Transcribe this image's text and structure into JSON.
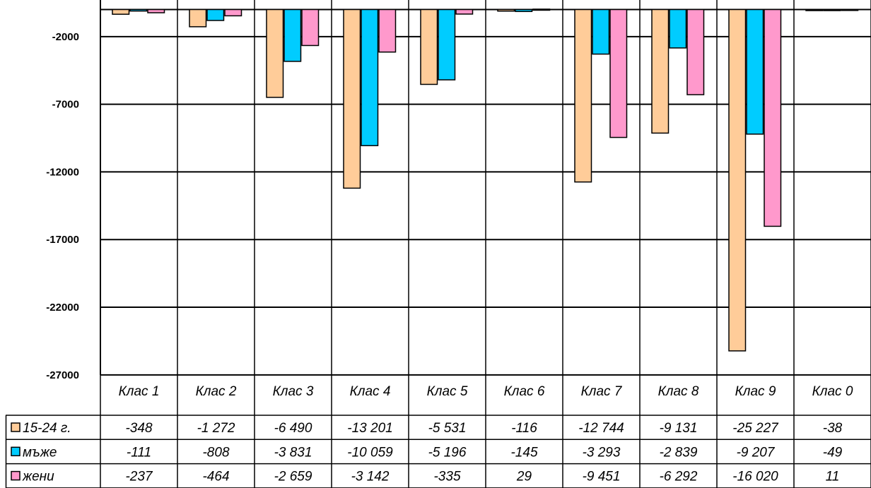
{
  "chart_data": {
    "type": "bar",
    "categories": [
      "Клас 1",
      "Клас 2",
      "Клас 3",
      "Клас 4",
      "Клас 5",
      "Клас 6",
      "Клас 7",
      "Клас 8",
      "Клас 9",
      "Клас 0"
    ],
    "series": [
      {
        "name": "15-24 г.",
        "color": "#FFCC99",
        "values": [
          -348,
          -1272,
          -6490,
          -13201,
          -5531,
          -116,
          -12744,
          -9131,
          -25227,
          -38
        ],
        "labels": [
          "-348",
          "-1 272",
          "-6 490",
          "-13 201",
          "-5 531",
          "-116",
          "-12 744",
          "-9 131",
          "-25 227",
          "-38"
        ]
      },
      {
        "name": "мъже",
        "color": "#00CCFF",
        "values": [
          -111,
          -808,
          -3831,
          -10059,
          -5196,
          -145,
          -3293,
          -2839,
          -9207,
          -49
        ],
        "labels": [
          "-111",
          "-808",
          "-3 831",
          "-10 059",
          "-5 196",
          "-145",
          "-3 293",
          "-2 839",
          "-9 207",
          "-49"
        ]
      },
      {
        "name": "жени",
        "color": "#FF99CC",
        "values": [
          -237,
          -464,
          -2659,
          -3142,
          -335,
          29,
          -9451,
          -6292,
          -16020,
          11
        ],
        "labels": [
          "-237",
          "-464",
          "-2 659",
          "-3 142",
          "-335",
          "29",
          "-9 451",
          "-6 292",
          "-16 020",
          "11"
        ]
      }
    ],
    "y_ticks": [
      -2000,
      -7000,
      -12000,
      -17000,
      -22000,
      -27000
    ],
    "ylim": [
      -27000,
      1000
    ],
    "grid": true,
    "legend": "data-table"
  }
}
